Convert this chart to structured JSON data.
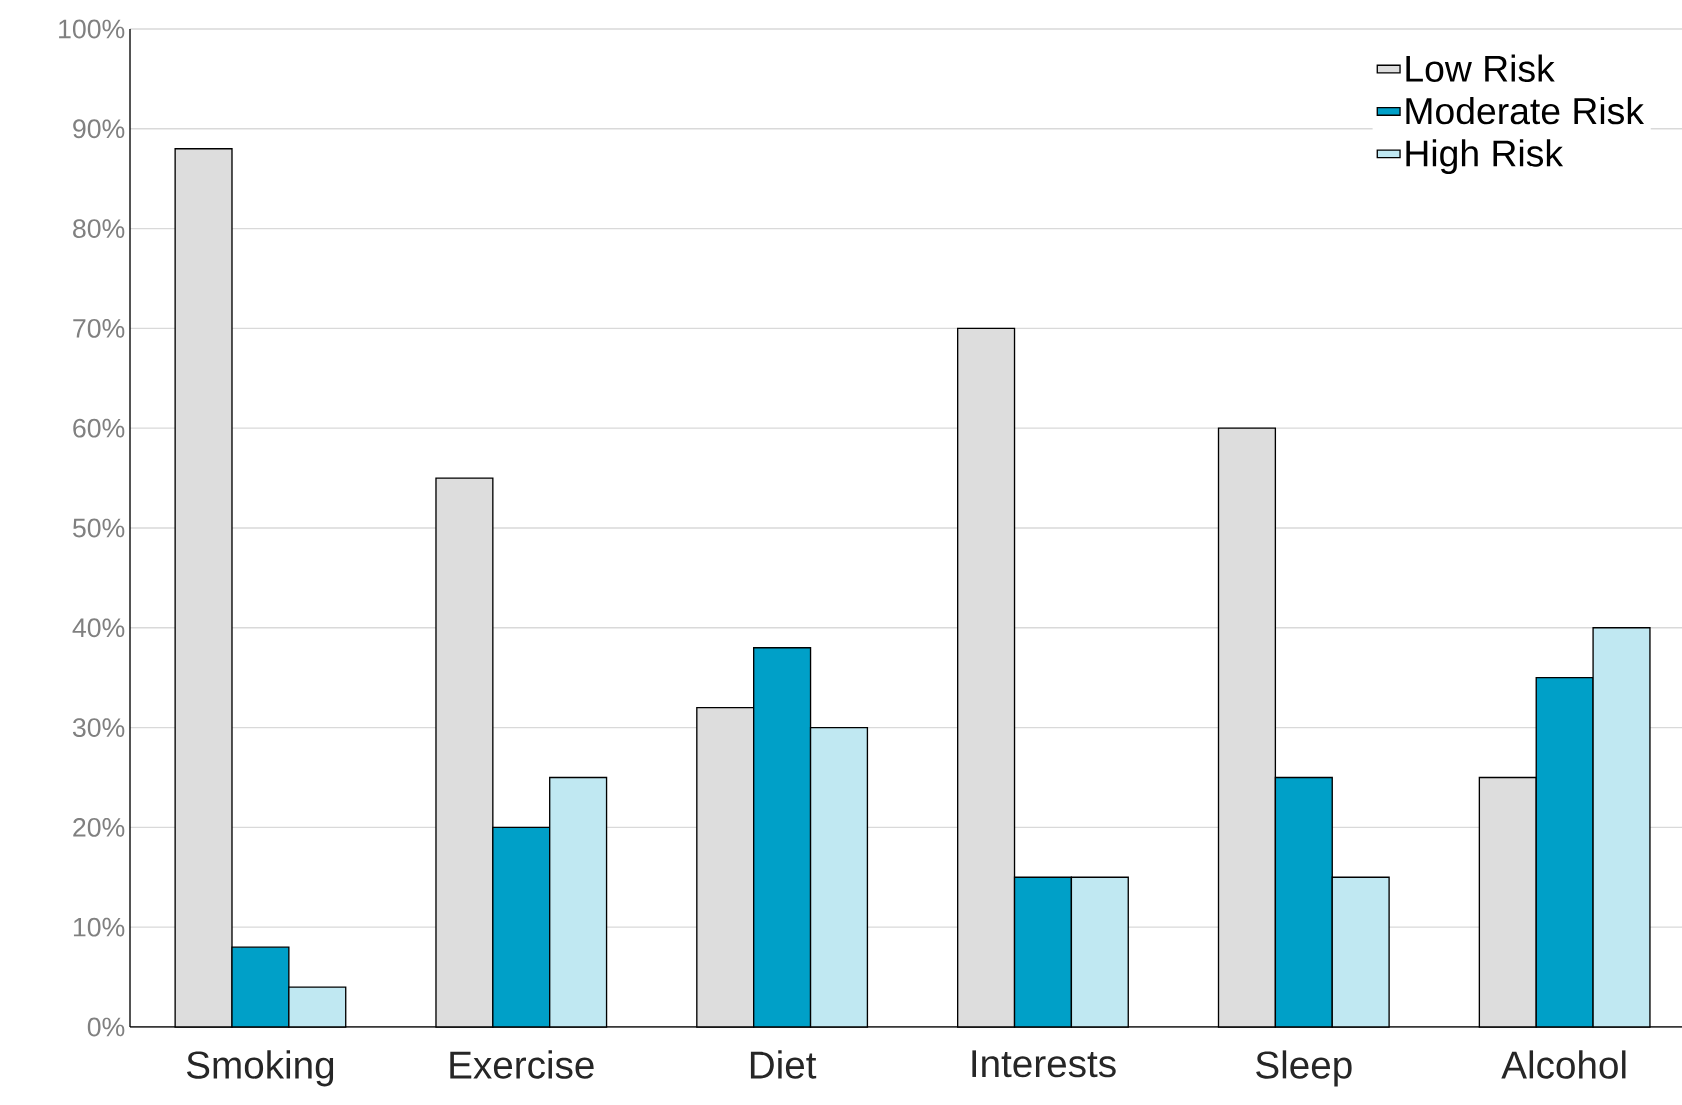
{
  "chart_data": {
    "type": "bar",
    "categories": [
      "Smoking",
      "Exercise",
      "Diet",
      "Interests",
      "Sleep",
      "Alcohol"
    ],
    "series": [
      {
        "name": "Low Risk",
        "color": "#dddddd",
        "values": [
          88,
          55,
          32,
          70,
          60,
          25
        ]
      },
      {
        "name": "Moderate Risk",
        "color": "#00a0c8",
        "values": [
          8,
          20,
          38,
          15,
          25,
          35
        ]
      },
      {
        "name": "High Risk",
        "color": "#c0e8f2",
        "values": [
          4,
          25,
          30,
          15,
          15,
          40
        ]
      }
    ],
    "ylim": [
      0,
      100
    ],
    "yticks": [
      {
        "value": 0,
        "label": "0%"
      },
      {
        "value": 10,
        "label": "10%"
      },
      {
        "value": 20,
        "label": "20%"
      },
      {
        "value": 30,
        "label": "30%"
      },
      {
        "value": 40,
        "label": "40%"
      },
      {
        "value": 50,
        "label": "50%"
      },
      {
        "value": 60,
        "label": "60%"
      },
      {
        "value": 70,
        "label": "70%"
      },
      {
        "value": 80,
        "label": "80%"
      },
      {
        "value": 90,
        "label": "90%"
      },
      {
        "value": 100,
        "label": "100%"
      }
    ],
    "grid": "y",
    "legend": "top right"
  }
}
